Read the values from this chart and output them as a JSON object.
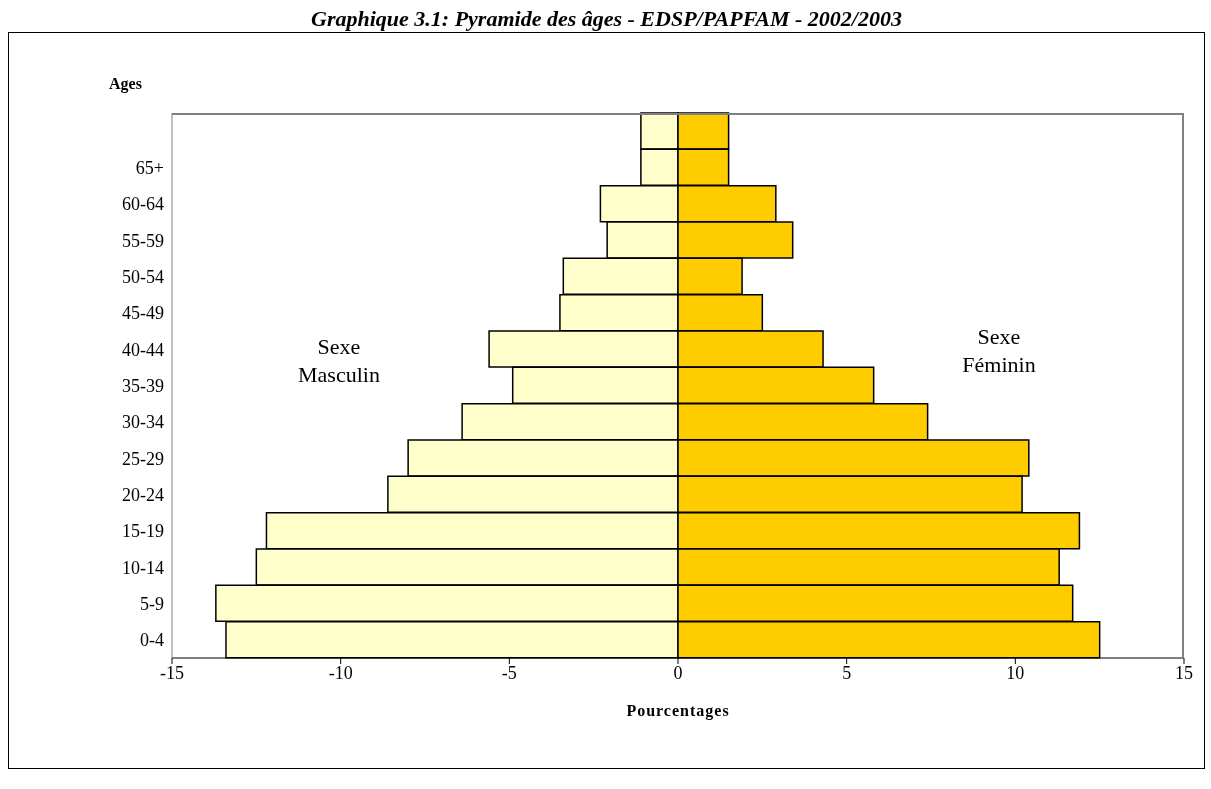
{
  "chart_data": {
    "type": "bar",
    "title": "Graphique 3.1: Pyramide des âges - EDSP/PAPFAM - 2002/2003",
    "orientation": "horizontal",
    "stacked": true,
    "xlabel": "Pourcentages",
    "ylabel": "Ages",
    "categories": [
      null,
      "65+",
      "60-64",
      "55-59",
      "50-54",
      "45-49",
      "40-44",
      "35-39",
      "30-34",
      "25-29",
      "20-24",
      "15-19",
      "10-14",
      "5-9",
      "0-4"
    ],
    "series": [
      {
        "name": "Sexe Masculin",
        "color": "#ffffcc",
        "values": [
          -1.1,
          -1.1,
          -2.3,
          -2.1,
          -3.4,
          -3.5,
          -5.6,
          -4.9,
          -6.4,
          -8.0,
          -8.6,
          -12.2,
          -12.5,
          -13.7,
          -13.4
        ]
      },
      {
        "name": "Sexe Féminin",
        "color": "#ffcc00",
        "values": [
          1.5,
          1.5,
          2.9,
          3.4,
          1.9,
          2.5,
          4.3,
          5.8,
          7.4,
          10.4,
          10.2,
          11.9,
          11.3,
          11.7,
          12.5
        ]
      }
    ],
    "xlim": [
      -15,
      15
    ],
    "xticks": [
      -15,
      -10,
      -5,
      0,
      5,
      10,
      15
    ],
    "grid": false
  }
}
